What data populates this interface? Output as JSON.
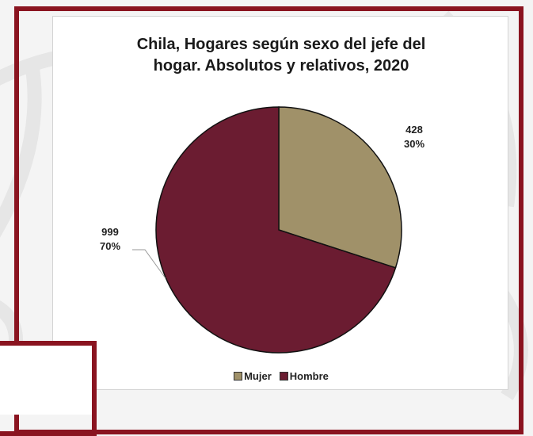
{
  "page": {
    "frame_color": "#8a1420",
    "background_color": "#f4f4f4"
  },
  "chart_data": {
    "type": "pie",
    "title_lines": [
      "Chila, Hogares según sexo del jefe del",
      "hogar. Absolutos y relativos, 2020"
    ],
    "slices": [
      {
        "name": "Mujer",
        "value": 428,
        "percent_label": "30%",
        "value_label": "428",
        "color": "#a09169"
      },
      {
        "name": "Hombre",
        "value": 999,
        "percent_label": "70%",
        "value_label": "999",
        "color": "#6b1c31"
      }
    ],
    "legend_position": "bottom"
  }
}
